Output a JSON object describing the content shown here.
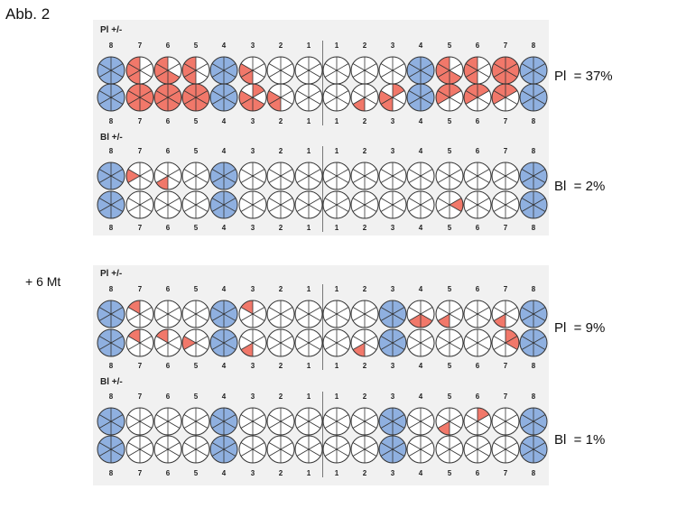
{
  "figure_label": "Abb. 2",
  "followup_label": "+ 6 Mt",
  "tooth_numbers": {
    "left": [
      "8",
      "7",
      "6",
      "5",
      "4",
      "3",
      "2",
      "1"
    ],
    "right": [
      "1",
      "2",
      "3",
      "4",
      "5",
      "6",
      "7",
      "8"
    ]
  },
  "colors": {
    "chart_bg": "#f1f1f1",
    "missing_tooth": "#8fb0e0",
    "plaque_red": "#ee6050",
    "outline": "#333333"
  },
  "charts": [
    {
      "section_label": "Pl  +/-",
      "index_text": "Pl  = 37%",
      "missing_left": [
        0,
        4
      ],
      "missing_right": [
        3,
        7
      ],
      "rows": [
        {
          "left": [
            [],
            [
              3,
              4,
              5
            ],
            [
              2,
              3,
              4,
              5
            ],
            [
              3,
              4,
              5
            ],
            [],
            [
              3,
              4
            ],
            [],
            []
          ],
          "right": [
            [],
            [],
            [],
            [],
            [
              2,
              3,
              4,
              5
            ],
            [
              3,
              4,
              5
            ],
            [
              0,
              1,
              2,
              3,
              4,
              5
            ],
            [
              0,
              1,
              2,
              3
            ]
          ]
        },
        {
          "left": [
            [],
            [
              0,
              1,
              2,
              3,
              4,
              5
            ],
            [
              0,
              1,
              2,
              3,
              4,
              5
            ],
            [
              0,
              1,
              2,
              3,
              4,
              5
            ],
            [],
            [
              0,
              2,
              3,
              4
            ],
            [
              3,
              4
            ],
            []
          ],
          "right": [
            [],
            [
              3
            ],
            [
              0,
              3,
              4
            ],
            [],
            [
              0,
              4,
              5
            ],
            [
              0,
              4,
              5
            ],
            [
              0,
              4,
              5
            ],
            [
              0,
              4,
              5
            ]
          ]
        }
      ]
    },
    {
      "section_label": "Bl +/-",
      "index_text": "Bl  = 2%",
      "missing_left": [
        0,
        4
      ],
      "missing_right": [
        7
      ],
      "rows": [
        {
          "left": [
            [],
            [
              4
            ],
            [
              3
            ],
            [],
            [],
            [],
            [],
            []
          ],
          "right": [
            [],
            [],
            [],
            [],
            [],
            [],
            [],
            []
          ]
        },
        {
          "left": [
            [],
            [],
            [],
            [],
            [],
            [],
            [],
            []
          ],
          "right": [
            [],
            [],
            [],
            [],
            [
              1
            ],
            [],
            [],
            []
          ]
        }
      ]
    },
    {
      "section_label": "Pl  +/-",
      "index_text": "Pl  = 9%",
      "missing_left": [
        0,
        4
      ],
      "missing_right": [
        2,
        7
      ],
      "rows": [
        {
          "left": [
            [],
            [
              5
            ],
            [],
            [],
            [],
            [
              5
            ],
            [],
            []
          ],
          "right": [
            [],
            [],
            [],
            [
              2,
              3
            ],
            [
              3
            ],
            [],
            [
              3
            ],
            []
          ]
        },
        {
          "left": [
            [],
            [
              5
            ],
            [
              5
            ],
            [
              4
            ],
            [],
            [
              3
            ],
            [],
            []
          ],
          "right": [
            [],
            [
              3
            ],
            [],
            [],
            [],
            [],
            [
              0,
              1
            ],
            []
          ]
        }
      ]
    },
    {
      "section_label": "Bl +/-",
      "index_text": "Bl  = 1%",
      "missing_left": [
        0,
        4
      ],
      "missing_right": [
        2,
        7
      ],
      "rows": [
        {
          "left": [
            [],
            [],
            [],
            [],
            [],
            [],
            [],
            []
          ],
          "right": [
            [],
            [],
            [],
            [],
            [
              3
            ],
            [
              0
            ],
            [],
            []
          ]
        },
        {
          "left": [
            [],
            [],
            [],
            [],
            [],
            [],
            [],
            []
          ],
          "right": [
            [],
            [],
            [],
            [],
            [],
            [],
            [],
            []
          ]
        }
      ]
    }
  ]
}
